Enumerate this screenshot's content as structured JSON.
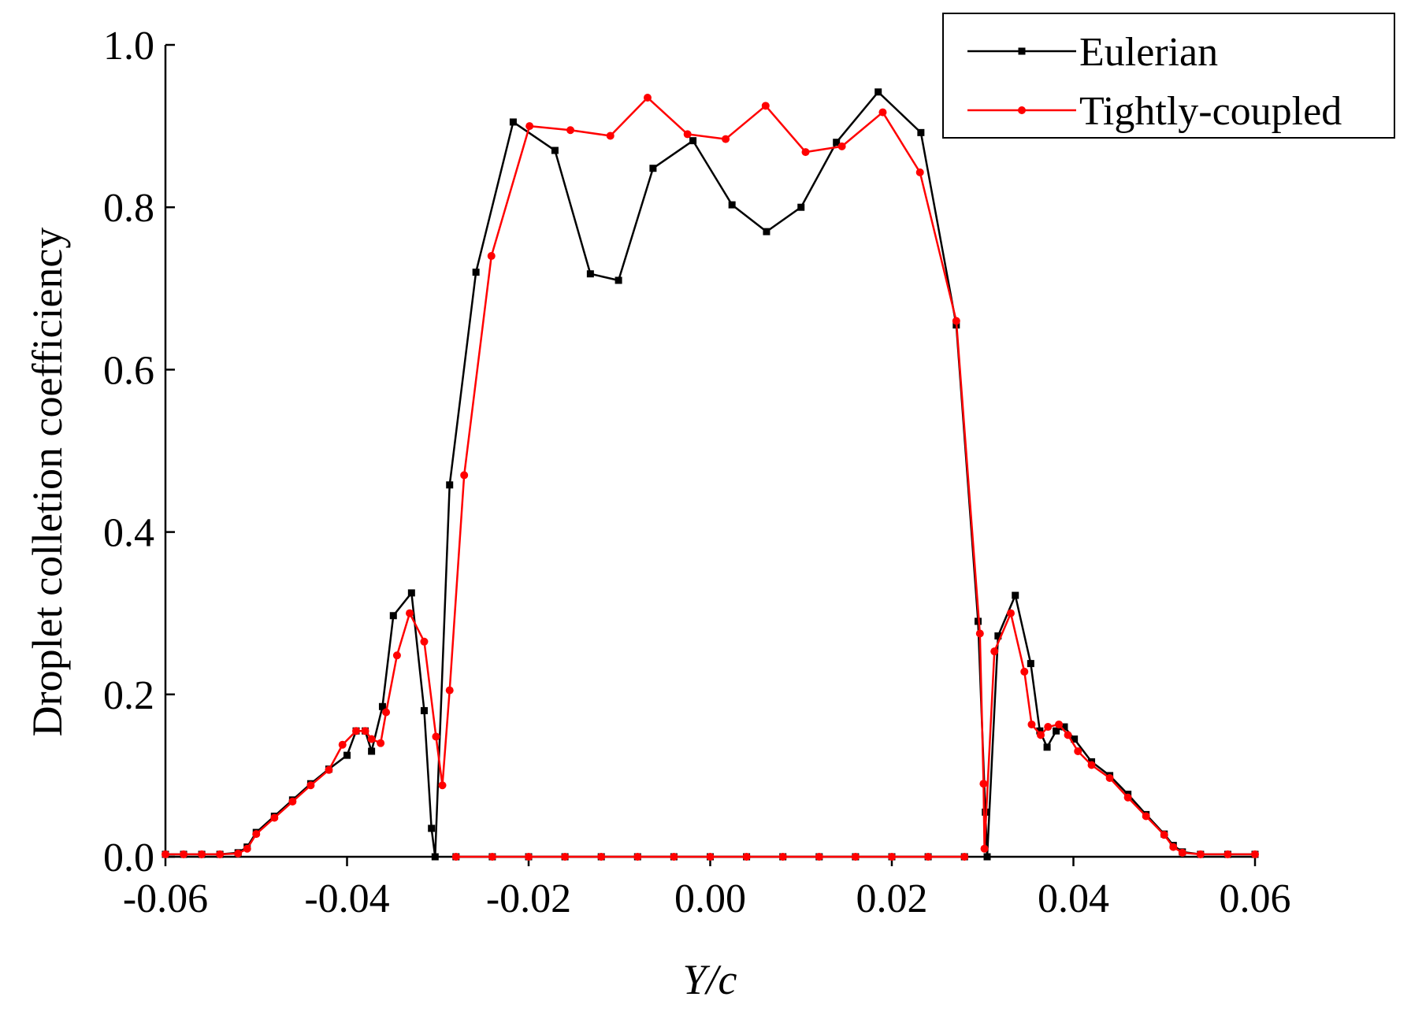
{
  "chart_data": {
    "type": "line",
    "x_label": "Y/c",
    "y_label": "Droplet colletion coefficiency",
    "xlim": [
      -0.06,
      0.06
    ],
    "ylim": [
      0,
      1
    ],
    "xticks": [
      -0.06,
      -0.04,
      -0.02,
      {
        "value": 0,
        "label": "0.00"
      },
      0.02,
      0.04,
      0.06
    ],
    "yticks": [
      {
        "value": 0,
        "label": "0.0"
      },
      0.2,
      0.4,
      0.6,
      0.8,
      {
        "value": 1,
        "label": "1.0"
      }
    ],
    "legend": "upper right",
    "series": [
      {
        "name": "Eulerian",
        "color": "#000000",
        "marker": "square",
        "x": [
          -0.06,
          -0.058,
          -0.056,
          -0.054,
          -0.052,
          -0.051,
          -0.05,
          -0.048,
          -0.046,
          -0.044,
          -0.042,
          -0.04,
          -0.039,
          -0.038,
          -0.0373,
          -0.0361,
          -0.0349,
          -0.0329,
          -0.0315,
          -0.0307,
          -0.0303,
          -0.0287,
          -0.0258,
          -0.0217,
          -0.0171,
          -0.0132,
          -0.0101,
          -0.0063,
          -0.0019,
          0.0024,
          0.0062,
          0.01,
          0.0139,
          0.0185,
          0.0232,
          0.0271,
          0.0295,
          0.0303,
          0.0305,
          0.0317,
          0.0336,
          0.0353,
          0.0363,
          0.0371,
          0.0381,
          0.039,
          0.0401,
          0.042,
          0.044,
          0.046,
          0.048,
          0.05,
          0.051,
          0.052,
          0.054,
          0.057,
          0.06,
          null,
          -0.028,
          -0.024,
          -0.02,
          -0.016,
          -0.012,
          -0.008,
          -0.004,
          0,
          0.004,
          0.008,
          0.012,
          0.016,
          0.02,
          0.024,
          0.028
        ],
        "values": [
          0.003,
          0.003,
          0.003,
          0.003,
          0.005,
          0.012,
          0.03,
          0.05,
          0.07,
          0.09,
          0.108,
          0.125,
          0.155,
          0.155,
          0.13,
          0.185,
          0.297,
          0.325,
          0.18,
          0.035,
          0,
          0.458,
          0.72,
          0.905,
          0.87,
          0.718,
          0.71,
          0.848,
          0.882,
          0.803,
          0.77,
          0.8,
          0.88,
          0.942,
          0.892,
          0.655,
          0.29,
          0.055,
          0,
          0.272,
          0.322,
          0.238,
          0.155,
          0.135,
          0.155,
          0.16,
          0.145,
          0.117,
          0.1,
          0.077,
          0.052,
          0.028,
          0.014,
          0.006,
          0.003,
          0.003,
          0.003,
          null,
          0,
          0,
          0,
          0,
          0,
          0,
          0,
          0,
          0,
          0,
          0,
          0,
          0,
          0,
          0
        ]
      },
      {
        "name": "Tightly-coupled",
        "color": "#ff0000",
        "marker": "circle",
        "x": [
          -0.06,
          -0.058,
          -0.056,
          -0.054,
          -0.052,
          -0.051,
          -0.05,
          -0.048,
          -0.046,
          -0.044,
          -0.042,
          -0.0405,
          -0.039,
          -0.038,
          -0.0373,
          -0.0363,
          -0.0357,
          -0.0345,
          -0.0331,
          -0.0315,
          -0.0302,
          -0.0295,
          -0.0287,
          -0.0271,
          -0.0241,
          -0.0199,
          -0.0154,
          -0.011,
          -0.0069,
          -0.0025,
          0.0017,
          0.0061,
          0.0105,
          0.0145,
          0.019,
          0.0231,
          0.0271,
          0.0297,
          0.0301,
          0.0302,
          0.0313,
          0.0331,
          0.0346,
          0.0354,
          0.0364,
          0.0372,
          0.0384,
          0.0394,
          0.0405,
          0.042,
          0.044,
          0.046,
          0.048,
          0.05,
          0.051,
          0.052,
          0.054,
          0.057,
          0.06,
          null,
          -0.028,
          -0.024,
          -0.02,
          -0.016,
          -0.012,
          -0.008,
          -0.004,
          0,
          0.004,
          0.008,
          0.012,
          0.016,
          0.02,
          0.024,
          0.028
        ],
        "values": [
          0.003,
          0.003,
          0.003,
          0.003,
          0.004,
          0.01,
          0.028,
          0.048,
          0.068,
          0.088,
          0.107,
          0.138,
          0.155,
          0.155,
          0.145,
          0.14,
          0.178,
          0.248,
          0.3,
          0.265,
          0.148,
          0.088,
          0.205,
          0.47,
          0.74,
          0.9,
          0.895,
          0.888,
          0.935,
          0.89,
          0.884,
          0.925,
          0.868,
          0.875,
          0.917,
          0.843,
          0.66,
          0.275,
          0.09,
          0.01,
          0.253,
          0.3,
          0.228,
          0.163,
          0.15,
          0.16,
          0.163,
          0.15,
          0.13,
          0.113,
          0.097,
          0.073,
          0.05,
          0.027,
          0.012,
          0.005,
          0.003,
          0.003,
          0.003,
          null,
          0,
          0,
          0,
          0,
          0,
          0,
          0,
          0,
          0,
          0,
          0,
          0,
          0,
          0,
          0
        ]
      }
    ]
  }
}
